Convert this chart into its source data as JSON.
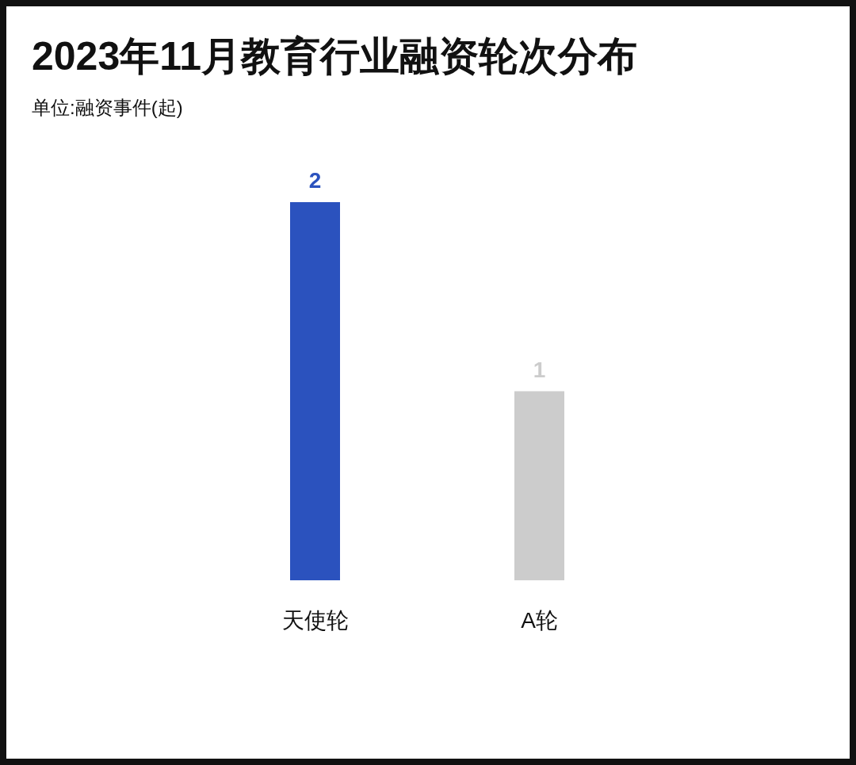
{
  "chart_data": {
    "type": "bar",
    "title": "2023年11月教育行业融资轮次分布",
    "subtitle": "单位:融资事件(起)",
    "categories": [
      "天使轮",
      "A轮"
    ],
    "values": [
      2,
      1
    ],
    "colors": [
      "#2b52be",
      "#cccccc"
    ],
    "data_labels": true
  }
}
